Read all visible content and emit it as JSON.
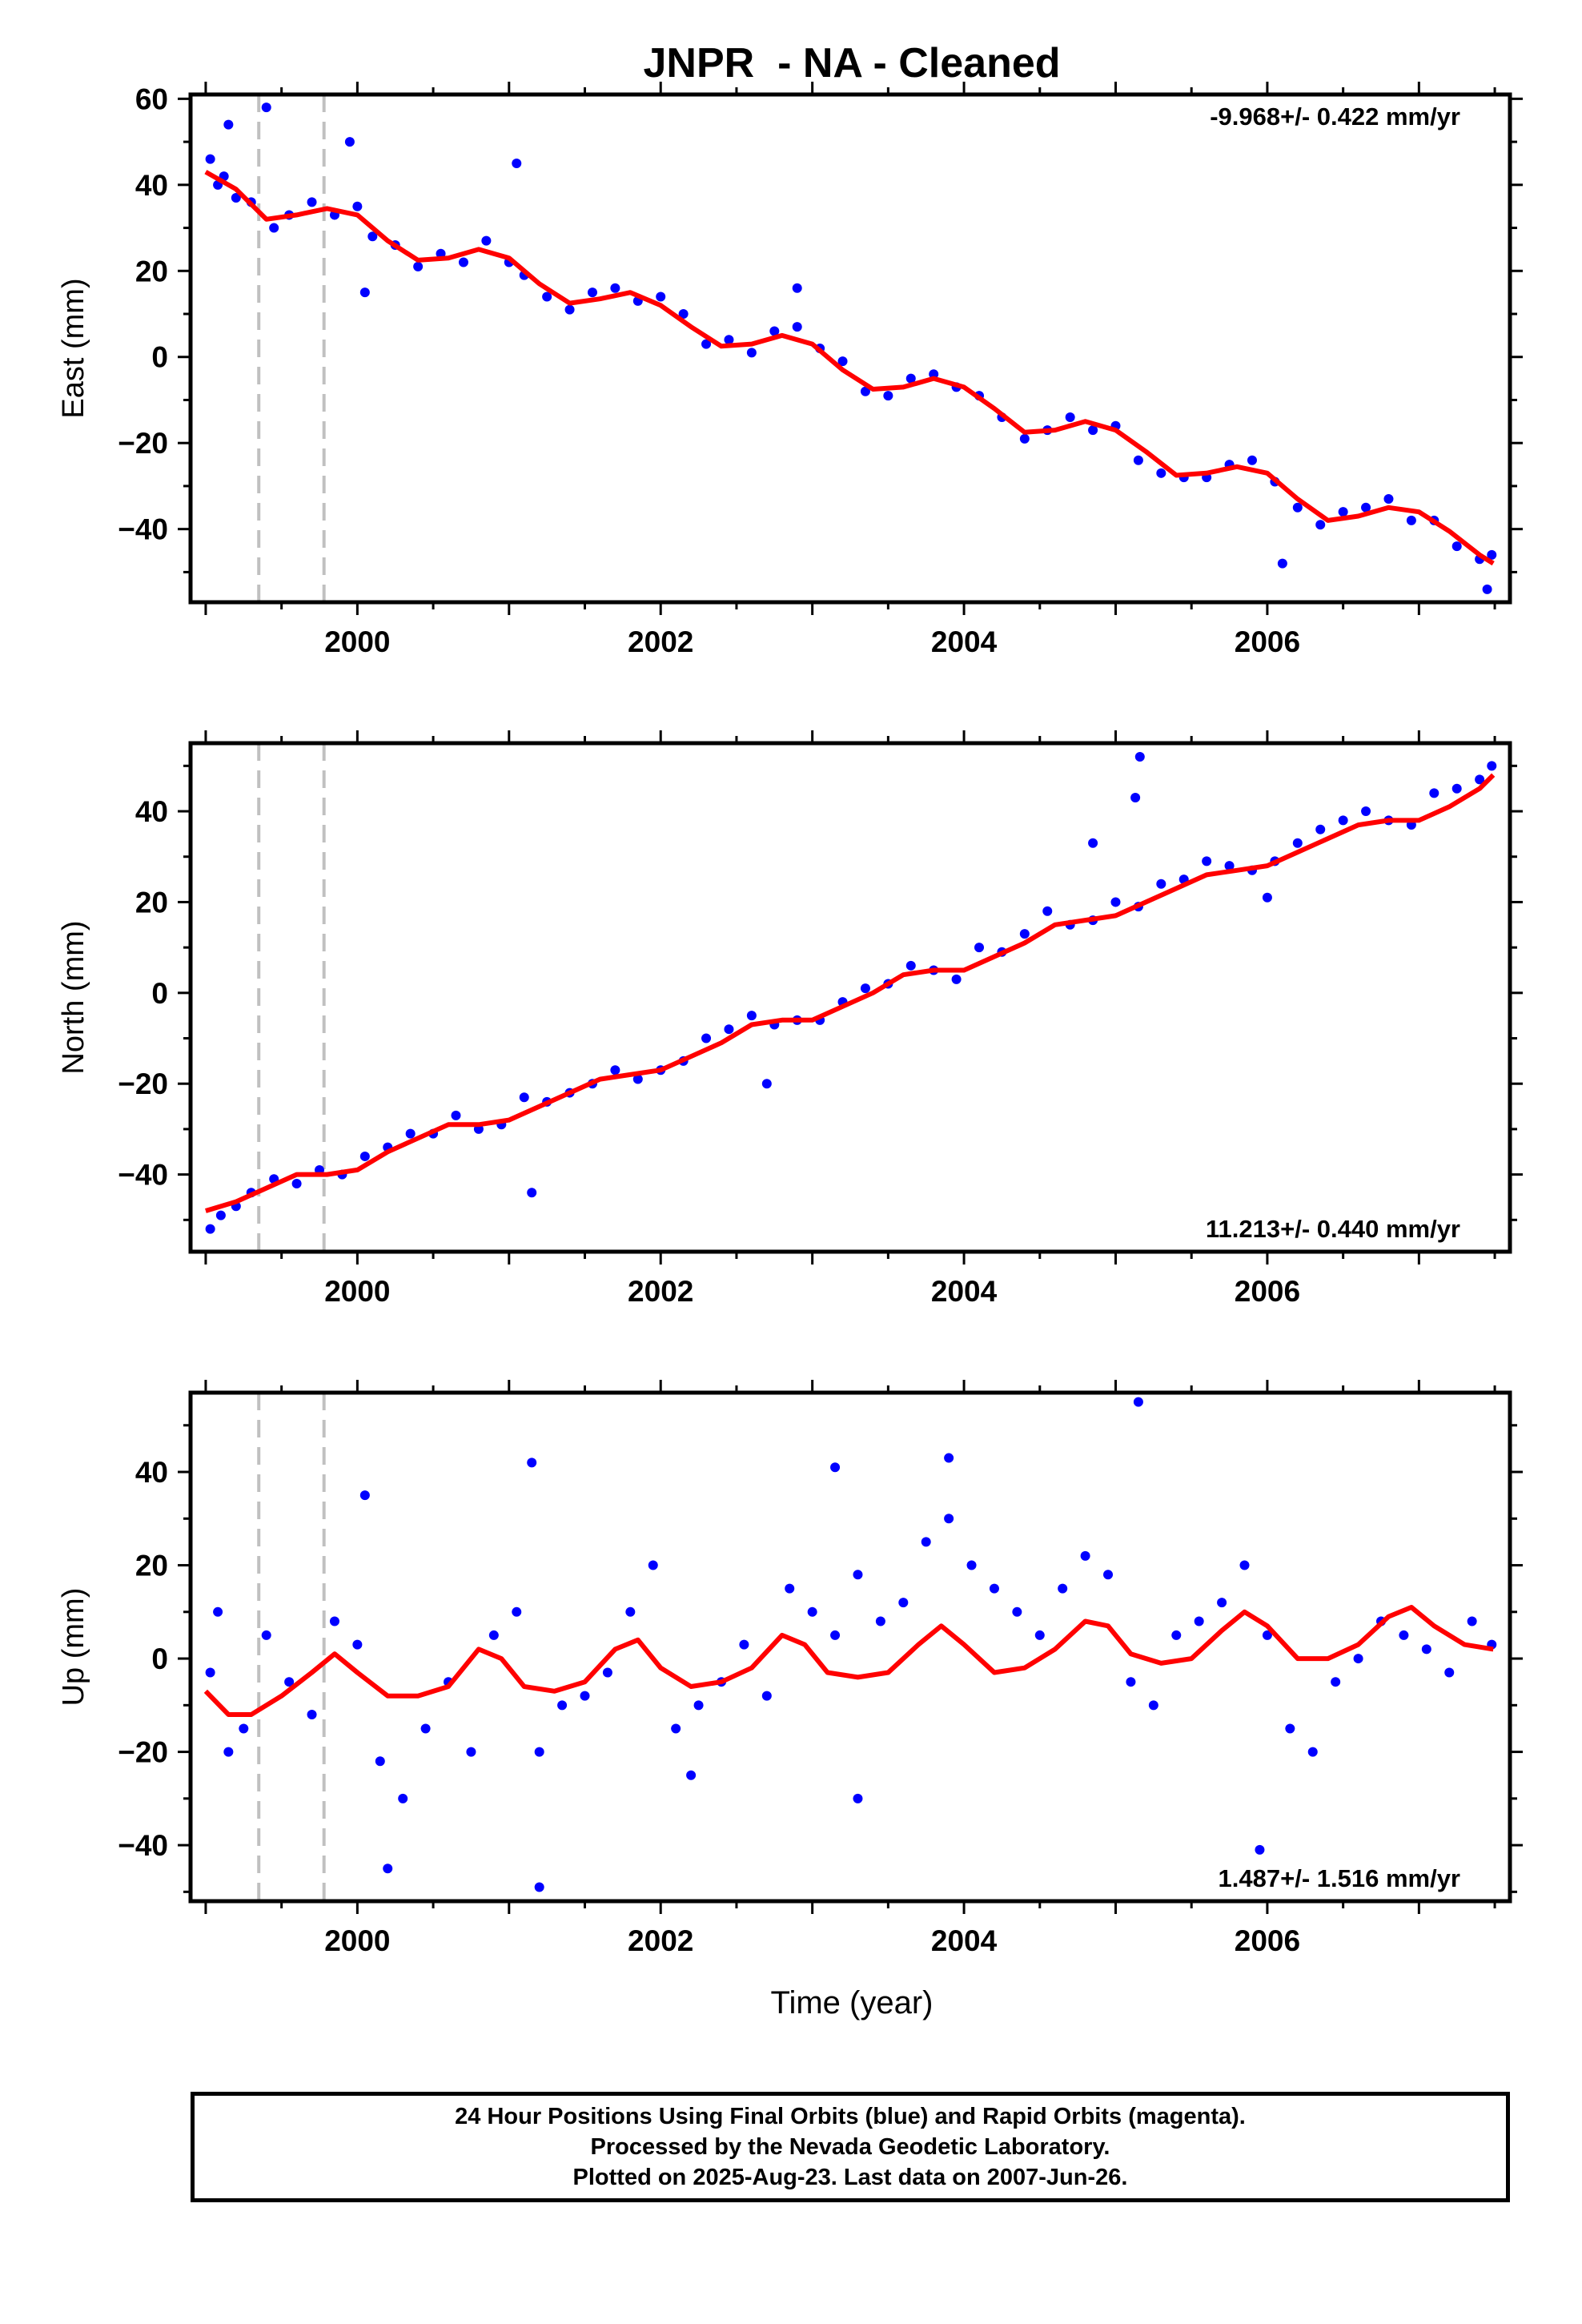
{
  "title": "JNPR  - NA - Cleaned",
  "xlabel": "Time (year)",
  "caption": [
    "24 Hour Positions Using Final Orbits (blue) and Rapid Orbits (magenta).",
    "Processed by the Nevada Geodetic Laboratory.",
    "Plotted on 2025-Aug-23. Last data on 2007-Jun-26."
  ],
  "colors": {
    "data": "#0000ff",
    "model": "#ff0000",
    "marker_lines": "#c0c0c0",
    "frame": "#000000"
  },
  "chart_data": [
    {
      "type": "scatter",
      "ylabel": "East (mm)",
      "rate_text": "-9.968+/- 0.422 mm/yr",
      "rate_position": "top-right",
      "xlim": [
        1998.9,
        2007.6
      ],
      "ylim": [
        -57,
        61
      ],
      "xticks": [
        2000,
        2002,
        2004,
        2006
      ],
      "xtick_labels": [
        "2000",
        "2002",
        "2004",
        "2006"
      ],
      "yticks": [
        -40,
        -20,
        0,
        20,
        40,
        60
      ],
      "ytick_labels": [
        "−40",
        "−20",
        "0",
        "20",
        "40",
        "60"
      ],
      "grid": false,
      "event_lines_x": [
        1999.35,
        1999.78
      ],
      "series": [
        {
          "kind": "model",
          "x": [
            1999.0,
            1999.2,
            1999.4,
            1999.6,
            1999.8,
            2000.0,
            2000.2,
            2000.4,
            2000.6,
            2000.8,
            2001.0,
            2001.2,
            2001.4,
            2001.6,
            2001.8,
            2002.0,
            2002.2,
            2002.4,
            2002.6,
            2002.8,
            2003.0,
            2003.2,
            2003.4,
            2003.6,
            2003.8,
            2004.0,
            2004.2,
            2004.4,
            2004.6,
            2004.8,
            2005.0,
            2005.2,
            2005.4,
            2005.6,
            2005.8,
            2006.0,
            2006.2,
            2006.4,
            2006.6,
            2006.8,
            2007.0,
            2007.2,
            2007.4,
            2007.49
          ],
          "y": [
            43,
            39,
            32,
            33,
            34.5,
            33,
            27,
            22.5,
            23,
            25,
            23,
            17,
            12.5,
            13.5,
            15,
            12,
            7,
            2.5,
            3,
            5,
            3,
            -3,
            -7.5,
            -7,
            -5,
            -7,
            -12,
            -17.5,
            -17,
            -15,
            -17,
            -22,
            -27.5,
            -27,
            -25.5,
            -27,
            -33,
            -38,
            -37,
            -35,
            -36,
            -40.5,
            -46,
            -48
          ]
        },
        {
          "kind": "observations",
          "color": "#0000ff",
          "x": [
            1999.03,
            1999.08,
            1999.12,
            1999.2,
            1999.3,
            1999.45,
            1999.55,
            1999.7,
            1999.85,
            2000.0,
            2000.1,
            2000.25,
            2000.4,
            2000.55,
            2000.7,
            2000.85,
            2001.0,
            2001.1,
            2001.25,
            2001.4,
            2001.55,
            2001.7,
            2001.85,
            2002.0,
            2002.15,
            2002.3,
            2002.45,
            2002.6,
            2002.75,
            2002.9,
            2003.05,
            2003.2,
            2003.35,
            2003.5,
            2003.65,
            2003.8,
            2003.95,
            2004.1,
            2004.25,
            2004.4,
            2004.55,
            2004.7,
            2004.85,
            2005.0,
            2005.15,
            2005.3,
            2005.45,
            2005.6,
            2005.75,
            2005.9,
            2006.05,
            2006.2,
            2006.35,
            2006.5,
            2006.65,
            2006.8,
            2006.95,
            2007.1,
            2007.25,
            2007.4,
            2007.48,
            1999.15,
            1999.4,
            1999.95,
            2000.05,
            2001.05,
            2002.9,
            2006.1,
            2007.45
          ],
          "y": [
            46,
            40,
            42,
            37,
            36,
            30,
            33,
            36,
            33,
            35,
            28,
            26,
            21,
            24,
            22,
            27,
            22,
            19,
            14,
            11,
            15,
            16,
            13,
            14,
            10,
            3,
            4,
            1,
            6,
            7,
            2,
            -1,
            -8,
            -9,
            -5,
            -4,
            -7,
            -9,
            -14,
            -19,
            -17,
            -14,
            -17,
            -16,
            -24,
            -27,
            -28,
            -28,
            -25,
            -24,
            -29,
            -35,
            -39,
            -36,
            -35,
            -33,
            -38,
            -38,
            -44,
            -47,
            -46,
            54,
            58,
            50,
            15,
            45,
            16,
            -48,
            -54
          ]
        }
      ]
    },
    {
      "type": "scatter",
      "ylabel": "North (mm)",
      "rate_text": "11.213+/- 0.440 mm/yr",
      "rate_position": "bottom-right",
      "xlim": [
        1998.9,
        2007.6
      ],
      "ylim": [
        -57,
        55
      ],
      "xticks": [
        2000,
        2002,
        2004,
        2006
      ],
      "xtick_labels": [
        "2000",
        "2002",
        "2004",
        "2006"
      ],
      "yticks": [
        -40,
        -20,
        0,
        20,
        40
      ],
      "ytick_labels": [
        "−40",
        "−20",
        "0",
        "20",
        "40"
      ],
      "grid": false,
      "event_lines_x": [
        1999.35,
        1999.78
      ],
      "series": [
        {
          "kind": "model",
          "x": [
            1999.0,
            1999.2,
            1999.4,
            1999.6,
            1999.8,
            2000.0,
            2000.2,
            2000.4,
            2000.6,
            2000.8,
            2001.0,
            2001.2,
            2001.4,
            2001.6,
            2001.8,
            2002.0,
            2002.2,
            2002.4,
            2002.6,
            2002.8,
            2003.0,
            2003.2,
            2003.4,
            2003.6,
            2003.8,
            2004.0,
            2004.2,
            2004.4,
            2004.6,
            2004.8,
            2005.0,
            2005.2,
            2005.4,
            2005.6,
            2005.8,
            2006.0,
            2006.2,
            2006.4,
            2006.6,
            2006.8,
            2007.0,
            2007.2,
            2007.4,
            2007.49
          ],
          "y": [
            -48,
            -46,
            -43,
            -40,
            -40,
            -39,
            -35,
            -32,
            -29,
            -29,
            -28,
            -25,
            -22,
            -19,
            -18,
            -17,
            -14,
            -11,
            -7,
            -6,
            -6,
            -3,
            0,
            4,
            5,
            5,
            8,
            11,
            15,
            16,
            17,
            20,
            23,
            26,
            27,
            28,
            31,
            34,
            37,
            38,
            38,
            41,
            45,
            48
          ]
        },
        {
          "kind": "observations",
          "color": "#0000ff",
          "x": [
            1999.03,
            1999.1,
            1999.2,
            1999.3,
            1999.45,
            1999.6,
            1999.75,
            1999.9,
            2000.05,
            2000.2,
            2000.35,
            2000.5,
            2000.65,
            2000.8,
            2000.95,
            2001.1,
            2001.25,
            2001.4,
            2001.55,
            2001.7,
            2001.85,
            2002.0,
            2002.15,
            2002.3,
            2002.45,
            2002.6,
            2002.75,
            2002.9,
            2003.05,
            2003.2,
            2003.35,
            2003.5,
            2003.65,
            2003.8,
            2003.95,
            2004.1,
            2004.25,
            2004.4,
            2004.55,
            2004.7,
            2004.85,
            2005.0,
            2005.15,
            2005.3,
            2005.45,
            2005.6,
            2005.75,
            2005.9,
            2006.05,
            2006.2,
            2006.35,
            2006.5,
            2006.65,
            2006.8,
            2006.95,
            2007.1,
            2007.25,
            2007.4,
            2007.48,
            2005.16,
            2005.13,
            2001.15,
            2002.7,
            2004.85,
            2006.0
          ],
          "y": [
            -52,
            -49,
            -47,
            -44,
            -41,
            -42,
            -39,
            -40,
            -36,
            -34,
            -31,
            -31,
            -27,
            -30,
            -29,
            -23,
            -24,
            -22,
            -20,
            -17,
            -19,
            -17,
            -15,
            -10,
            -8,
            -5,
            -7,
            -6,
            -6,
            -2,
            1,
            2,
            6,
            5,
            3,
            10,
            9,
            13,
            18,
            15,
            16,
            20,
            19,
            24,
            25,
            29,
            28,
            27,
            29,
            33,
            36,
            38,
            40,
            38,
            37,
            44,
            45,
            47,
            50,
            52,
            43,
            -44,
            -20,
            33,
            21
          ]
        }
      ]
    },
    {
      "type": "scatter",
      "ylabel": "Up (mm)",
      "rate_text": "1.487+/- 1.516 mm/yr",
      "rate_position": "bottom-right",
      "xlim": [
        1998.9,
        2007.6
      ],
      "ylim": [
        -52,
        57
      ],
      "xticks": [
        2000,
        2002,
        2004,
        2006
      ],
      "xtick_labels": [
        "2000",
        "2002",
        "2004",
        "2006"
      ],
      "yticks": [
        -40,
        -20,
        0,
        20,
        40
      ],
      "ytick_labels": [
        "−40",
        "−20",
        "0",
        "20",
        "40"
      ],
      "grid": false,
      "event_lines_x": [
        1999.35,
        1999.78
      ],
      "series": [
        {
          "kind": "model",
          "x": [
            1999.0,
            1999.15,
            1999.3,
            1999.5,
            1999.7,
            1999.85,
            2000.0,
            2000.2,
            2000.4,
            2000.6,
            2000.8,
            2000.95,
            2001.1,
            2001.3,
            2001.5,
            2001.7,
            2001.85,
            2002.0,
            2002.2,
            2002.4,
            2002.6,
            2002.8,
            2002.95,
            2003.1,
            2003.3,
            2003.5,
            2003.7,
            2003.85,
            2004.0,
            2004.2,
            2004.4,
            2004.6,
            2004.8,
            2004.95,
            2005.1,
            2005.3,
            2005.5,
            2005.7,
            2005.85,
            2006.0,
            2006.2,
            2006.4,
            2006.6,
            2006.8,
            2006.95,
            2007.1,
            2007.3,
            2007.49
          ],
          "y": [
            -7,
            -12,
            -12,
            -8,
            -3,
            1,
            -3,
            -8,
            -8,
            -6,
            2,
            0,
            -6,
            -7,
            -5,
            2,
            4,
            -2,
            -6,
            -5,
            -2,
            5,
            3,
            -3,
            -4,
            -3,
            3,
            7,
            3,
            -3,
            -2,
            2,
            8,
            7,
            1,
            -1,
            0,
            6,
            10,
            7,
            0,
            0,
            3,
            9,
            11,
            7,
            3,
            2
          ]
        },
        {
          "kind": "observations",
          "color": "#0000ff",
          "x": [
            1999.03,
            1999.08,
            1999.15,
            1999.25,
            1999.4,
            1999.55,
            1999.7,
            1999.85,
            2000.0,
            2000.15,
            2000.3,
            2000.45,
            2000.6,
            2000.75,
            2000.9,
            2001.05,
            2001.2,
            2001.35,
            2001.5,
            2001.65,
            2001.8,
            2001.95,
            2002.1,
            2002.25,
            2002.4,
            2002.55,
            2002.7,
            2002.85,
            2003.0,
            2003.15,
            2003.3,
            2003.45,
            2003.6,
            2003.75,
            2003.9,
            2004.05,
            2004.2,
            2004.35,
            2004.5,
            2004.65,
            2004.8,
            2004.95,
            2005.1,
            2005.25,
            2005.4,
            2005.55,
            2005.7,
            2005.85,
            2006.0,
            2006.15,
            2006.3,
            2006.45,
            2006.6,
            2006.75,
            2006.9,
            2007.05,
            2007.2,
            2007.35,
            2007.48,
            2005.15,
            2001.15,
            2000.05,
            2003.3,
            2003.15,
            2005.95,
            2001.2,
            2000.2,
            2003.9,
            2002.2
          ],
          "y": [
            -3,
            10,
            -20,
            -15,
            5,
            -5,
            -12,
            8,
            3,
            -22,
            -30,
            -15,
            -5,
            -20,
            5,
            10,
            -20,
            -10,
            -8,
            -3,
            10,
            20,
            -15,
            -10,
            -5,
            3,
            -8,
            15,
            10,
            5,
            18,
            8,
            12,
            25,
            30,
            20,
            15,
            10,
            5,
            15,
            22,
            18,
            -5,
            -10,
            5,
            8,
            12,
            20,
            5,
            -15,
            -20,
            -5,
            0,
            8,
            5,
            2,
            -3,
            8,
            3,
            55,
            42,
            35,
            -30,
            41,
            -41,
            -49,
            -45,
            43,
            -25
          ]
        }
      ]
    }
  ]
}
